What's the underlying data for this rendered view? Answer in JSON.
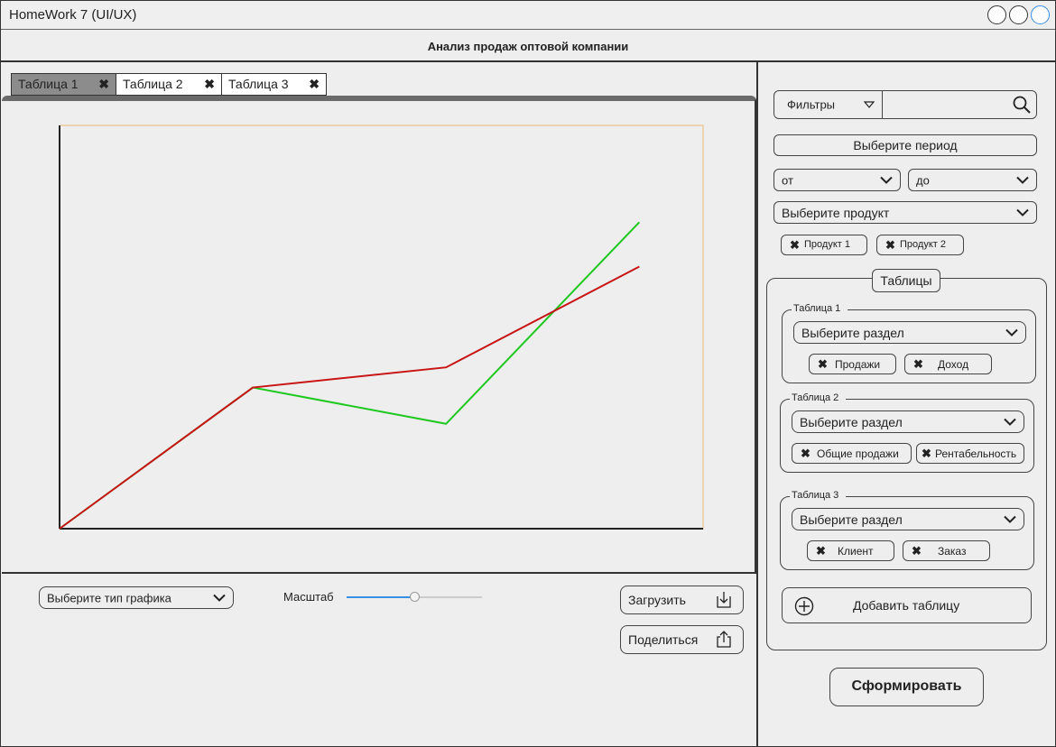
{
  "window": {
    "title": "HomeWork 7 (UI/UX)"
  },
  "header": {
    "title": "Анализ продаж оптовой компании"
  },
  "tabs": [
    {
      "label": "Таблица 1",
      "active": true
    },
    {
      "label": "Таблица 2",
      "active": false
    },
    {
      "label": "Таблица 3",
      "active": false
    }
  ],
  "chart_data": {
    "type": "line",
    "x": [
      0,
      1,
      2,
      3
    ],
    "series": [
      {
        "values": [
          0,
          35,
          26,
          76
        ],
        "color": "#1ec81e"
      },
      {
        "values": [
          0,
          35,
          40,
          65
        ],
        "color": "#c81414"
      }
    ],
    "xlim": [
      0,
      3.33
    ],
    "ylim": [
      0,
      100
    ],
    "grid": false
  },
  "bottom": {
    "chart_type_select": "Выберите тип графика",
    "scale_label": "Масштаб",
    "scale_value": 0.5,
    "load_button": "Загрузить",
    "share_button": "Поделиться"
  },
  "sidebar": {
    "filters_label": "Фильтры",
    "search_value": "",
    "period_button": "Выберите период",
    "from_select": "от",
    "to_select": "до",
    "product_select": "Выберите продукт",
    "product_chips": [
      "Продукт 1",
      "Продукт 2"
    ],
    "tables_title": "Таблицы",
    "tables": [
      {
        "legend": "Таблица 1",
        "select": "Выберите раздел",
        "chips": [
          "Продажи",
          "Доход"
        ]
      },
      {
        "legend": "Таблица 2",
        "select": "Выберите раздел",
        "chips": [
          "Общие продажи",
          "Рентабельность"
        ]
      },
      {
        "legend": "Таблица 3",
        "select": "Выберите раздел",
        "chips": [
          "Клиент",
          "Заказ"
        ]
      }
    ],
    "add_table_button": "Добавить таблицу",
    "generate_button": "Сформировать"
  },
  "colors": {
    "accent_slider": "#3a8ee6",
    "chart_border": "#e8b87a"
  },
  "icons": [
    "close-icon",
    "search-icon",
    "chevron-down-icon",
    "download-icon",
    "share-icon",
    "plus-circle-icon"
  ]
}
